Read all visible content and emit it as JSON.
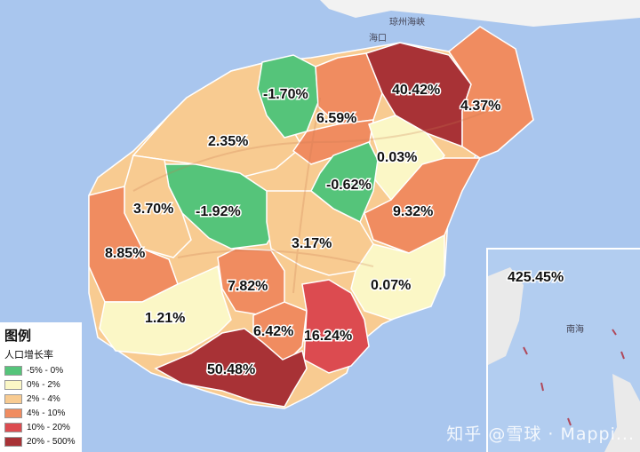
{
  "legend": {
    "title": "图例",
    "subtitle": "人口增长率",
    "items": [
      {
        "label": "-5% - 0%",
        "color": "#55c47a"
      },
      {
        "label": "0% - 2%",
        "color": "#fbf7c6"
      },
      {
        "label": "2% - 4%",
        "color": "#f8cb91"
      },
      {
        "label": "4% - 10%",
        "color": "#f08c60"
      },
      {
        "label": "10% - 20%",
        "color": "#dc4b50"
      },
      {
        "label": "20% - 500%",
        "color": "#a83236"
      }
    ]
  },
  "places": {
    "haikou": "海口",
    "strait": "琼州海峡",
    "southsea": "南海"
  },
  "regions": {
    "haikou": "40.42%",
    "wenchang": "4.37%",
    "chengmai": "-1.70%",
    "dingan": "6.59%",
    "danzhou": "2.35%",
    "tunchang": "0.03%",
    "qiongzhong": "-0.62%",
    "baisha": "-1.92%",
    "changjiang": "3.70%",
    "qionghai": "9.32%",
    "dongfang": "8.85%",
    "wuzhishan": "3.17%",
    "wanning": "0.07%",
    "ledong": "7.82%",
    "lingshui": "16.24%",
    "baoting": "6.42%",
    "ledongsouth": "1.21%",
    "sanya": "50.48%",
    "sansha": "425.45%"
  },
  "watermark": "知乎 @雪球 · Mappi..."
}
